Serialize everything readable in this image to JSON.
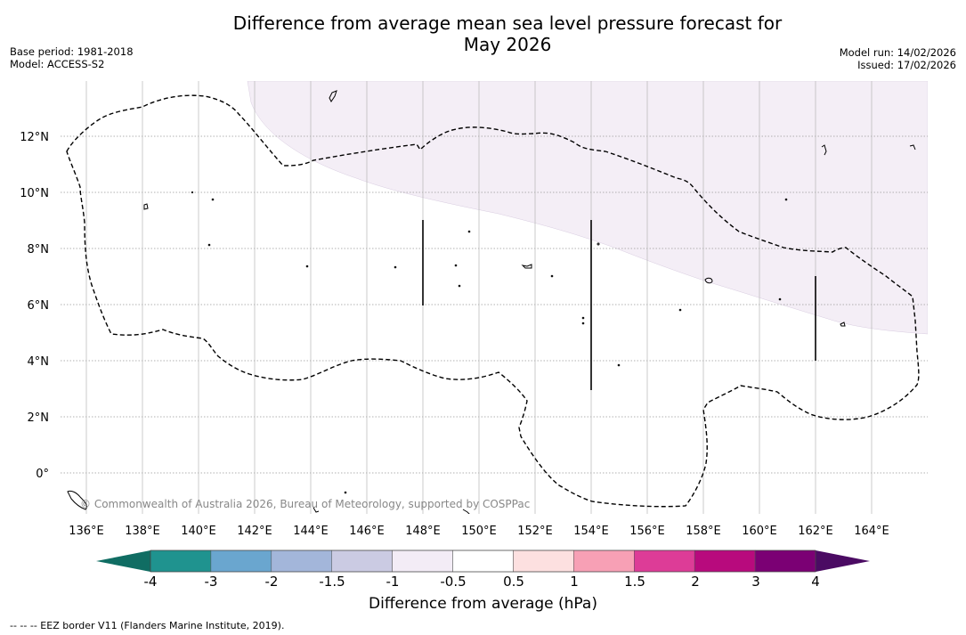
{
  "title": "Difference from average mean sea level pressure forecast for May 2026",
  "title_line1": "Difference from average mean sea level pressure forecast for",
  "title_line2": "May 2026",
  "base_period": "Base period: 1981-2018",
  "model": "Model: ACCESS-S2",
  "model_run": "Model run: 14/02/2026",
  "issued": "Issued: 17/02/2026",
  "copyright": "© Commonwealth of Australia 2026, Bureau of Meteorology, supported by COSPPac",
  "lat_labels": [
    "12°N",
    "10°N",
    "8°N",
    "6°N",
    "4°N",
    "2°N",
    "0°"
  ],
  "lon_labels": [
    "136°E",
    "138°E",
    "140°E",
    "142°E",
    "144°E",
    "146°E",
    "148°E",
    "150°E",
    "152°E",
    "154°E",
    "156°E",
    "158°E",
    "160°E",
    "162°E",
    "164°E"
  ],
  "colorbar": {
    "ticks": [
      "-4",
      "-3",
      "-2",
      "-1.5",
      "-1",
      "-0.5",
      "0.5",
      "1",
      "1.5",
      "2",
      "3",
      "4"
    ],
    "colors": [
      "#1f938f",
      "#6aa6cf",
      "#a3b6da",
      "#cbcbe3",
      "#f3ecf6",
      "#ffffff",
      "#fde0e0",
      "#f7a0b5",
      "#dd3c97",
      "#b80a7d",
      "#7b0074"
    ],
    "under_color": "#106d63",
    "over_color": "#4b0b63",
    "label": "Difference from average (hPa)"
  },
  "map_layers": {
    "anomaly_region_color": "#f4eef6",
    "anomaly_region_value": "-1 to -0.5 hPa"
  },
  "footnote": "--  --  -- EEZ border V11 (Flanders Marine Institute, 2019)."
}
